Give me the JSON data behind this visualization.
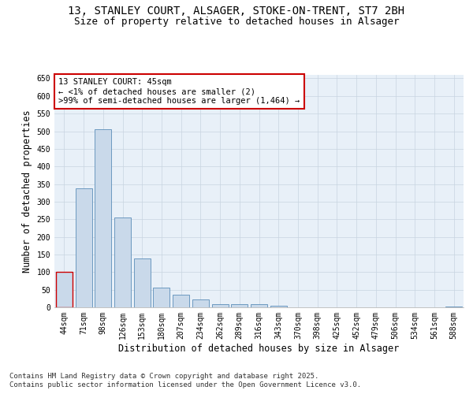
{
  "title_line1": "13, STANLEY COURT, ALSAGER, STOKE-ON-TRENT, ST7 2BH",
  "title_line2": "Size of property relative to detached houses in Alsager",
  "xlabel": "Distribution of detached houses by size in Alsager",
  "ylabel": "Number of detached properties",
  "categories": [
    "44sqm",
    "71sqm",
    "98sqm",
    "126sqm",
    "153sqm",
    "180sqm",
    "207sqm",
    "234sqm",
    "262sqm",
    "289sqm",
    "316sqm",
    "343sqm",
    "370sqm",
    "398sqm",
    "425sqm",
    "452sqm",
    "479sqm",
    "506sqm",
    "534sqm",
    "561sqm",
    "588sqm"
  ],
  "values": [
    100,
    338,
    506,
    254,
    138,
    55,
    35,
    22,
    8,
    10,
    10,
    5,
    0,
    0,
    0,
    0,
    0,
    0,
    0,
    0,
    3
  ],
  "bar_color": "#c9d9ea",
  "bar_edge_color": "#5b8db8",
  "annotation_text": "13 STANLEY COURT: 45sqm\n← <1% of detached houses are smaller (2)\n>99% of semi-detached houses are larger (1,464) →",
  "annotation_box_color": "#ffffff",
  "annotation_box_edge_color": "#cc0000",
  "highlight_bar_index": 0,
  "ylim": [
    0,
    660
  ],
  "yticks": [
    0,
    50,
    100,
    150,
    200,
    250,
    300,
    350,
    400,
    450,
    500,
    550,
    600,
    650
  ],
  "grid_color": "#c8d4e0",
  "bg_color": "#e8f0f8",
  "footer_line1": "Contains HM Land Registry data © Crown copyright and database right 2025.",
  "footer_line2": "Contains public sector information licensed under the Open Government Licence v3.0.",
  "title_fontsize": 10,
  "subtitle_fontsize": 9,
  "axis_label_fontsize": 8.5,
  "tick_fontsize": 7,
  "annotation_fontsize": 7.5,
  "footer_fontsize": 6.5
}
